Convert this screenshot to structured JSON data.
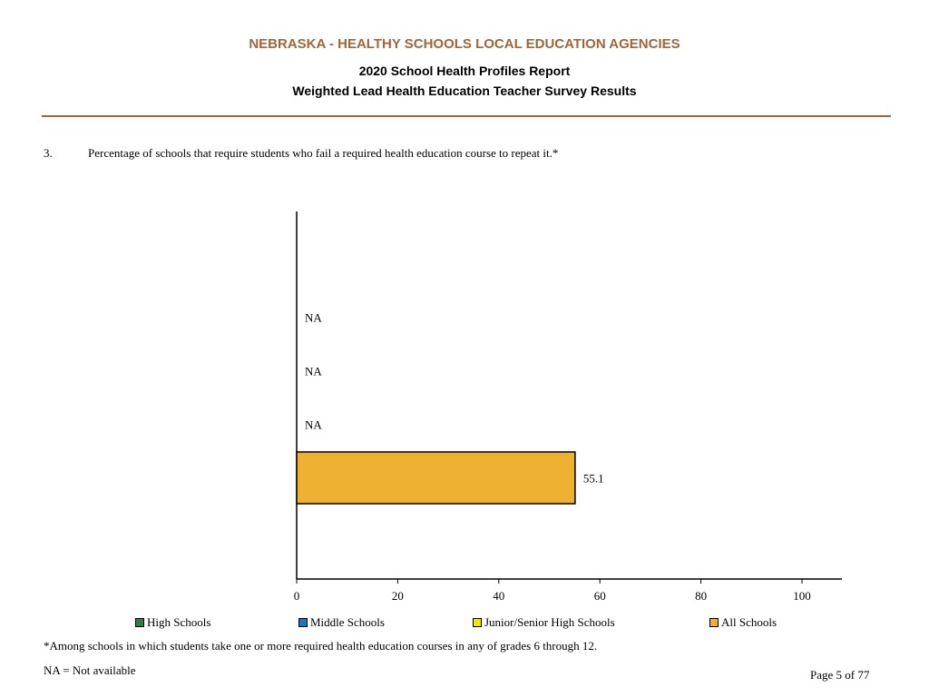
{
  "header": {
    "org": "NEBRASKA - HEALTHY SCHOOLS LOCAL EDUCATION AGENCIES",
    "report": "2020 School Health Profiles Report",
    "subtitle": "Weighted Lead Health Education Teacher Survey Results"
  },
  "question": {
    "number": "3.",
    "text": "Percentage of schools that require students who fail a required health education course to repeat it.*"
  },
  "chart_data": {
    "type": "bar",
    "orientation": "horizontal",
    "xlim": [
      0,
      100
    ],
    "xticks": [
      "0",
      "20",
      "40",
      "60",
      "80",
      "100"
    ],
    "bars": [
      {
        "series": "High Schools",
        "value": null,
        "label": "NA",
        "color": "#2E7D4F"
      },
      {
        "series": "Middle Schools",
        "value": null,
        "label": "NA",
        "color": "#1F78B4"
      },
      {
        "series": "Junior/Senior High Schools",
        "value": null,
        "label": "NA",
        "color": "#F2E600"
      },
      {
        "series": "All Schools",
        "value": 55.1,
        "label": "55.1",
        "color": "#EDB031"
      }
    ],
    "legend": [
      {
        "name": "High Schools",
        "color": "#2E7D4F"
      },
      {
        "name": "Middle Schools",
        "color": "#1F78B4"
      },
      {
        "name": "Junior/Senior High Schools",
        "color": "#F2E600"
      },
      {
        "name": "All Schools",
        "color": "#EDB031"
      }
    ]
  },
  "notes": {
    "footnote": "*Among schools in which students take one or more required health education courses in any of grades 6 through 12.",
    "na": "NA = Not available"
  },
  "page": "Page 5 of 77",
  "colors": {
    "accent": "#A0663A"
  }
}
